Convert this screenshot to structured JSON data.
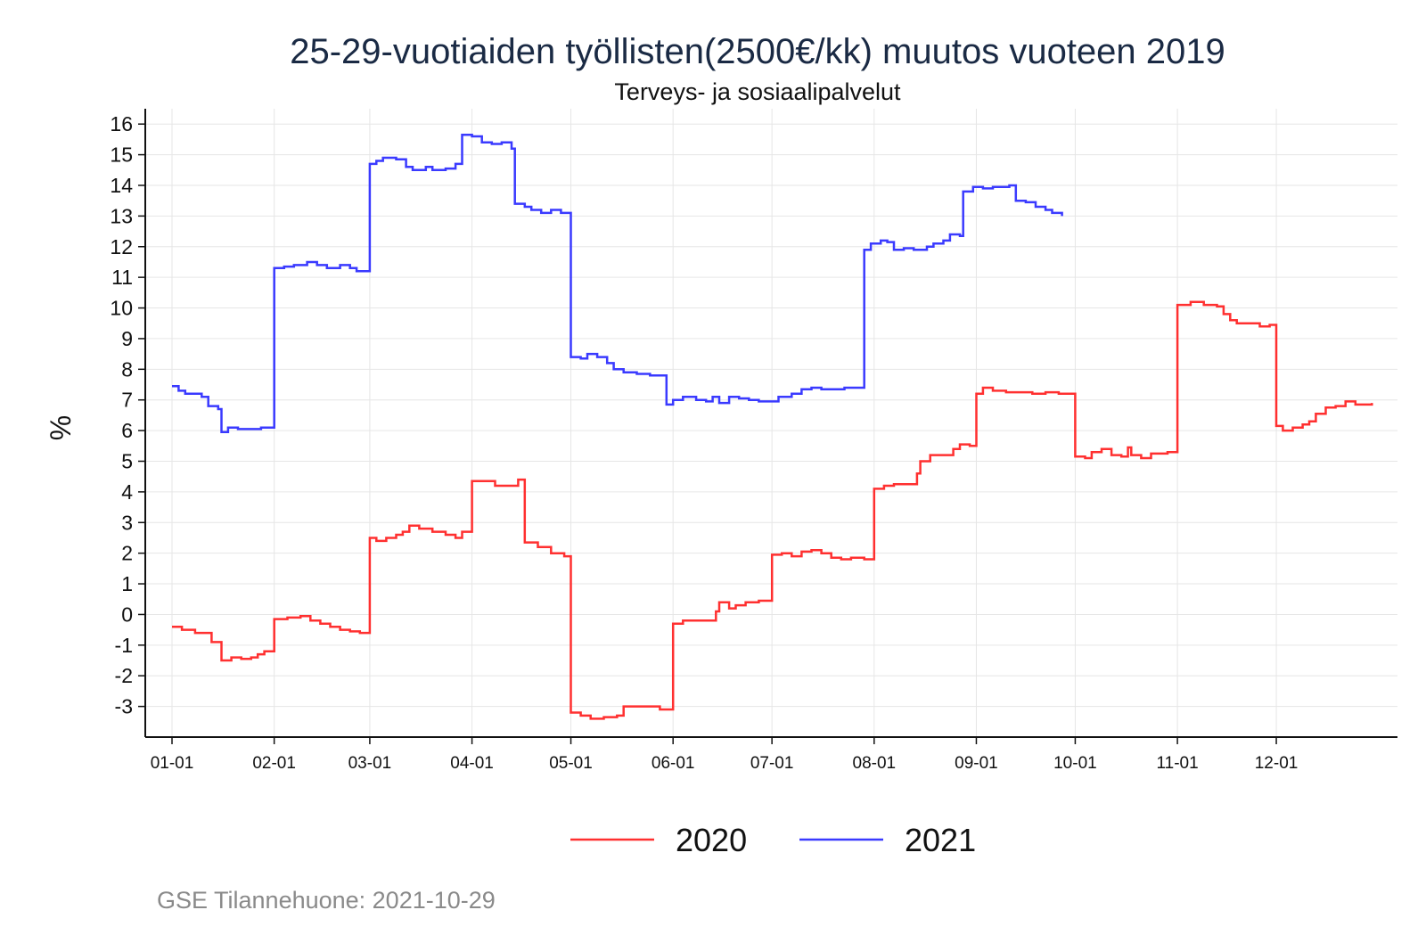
{
  "chart_data": {
    "type": "line",
    "title": "25-29-vuotiaiden työllisten(2500€/kk) muutos vuoteen 2019",
    "subtitle": "Terveys- ja sosiaalipalvelut",
    "ylabel": "%",
    "xlabel": "",
    "ylim": [
      -4,
      16.5
    ],
    "yticks": [
      -3,
      -2,
      -1,
      0,
      1,
      2,
      3,
      4,
      5,
      6,
      7,
      8,
      9,
      10,
      11,
      12,
      13,
      14,
      15,
      16
    ],
    "xlim": [
      1,
      366
    ],
    "xticks": [
      {
        "label": "01-01",
        "day": 1
      },
      {
        "label": "02-01",
        "day": 32
      },
      {
        "label": "03-01",
        "day": 61
      },
      {
        "label": "04-01",
        "day": 92
      },
      {
        "label": "05-01",
        "day": 122
      },
      {
        "label": "06-01",
        "day": 153
      },
      {
        "label": "07-01",
        "day": 183
      },
      {
        "label": "08-01",
        "day": 214
      },
      {
        "label": "09-01",
        "day": 245
      },
      {
        "label": "10-01",
        "day": 275
      },
      {
        "label": "11-01",
        "day": 306
      },
      {
        "label": "12-01",
        "day": 336
      }
    ],
    "grid": true,
    "legend_position": "bottom",
    "series": [
      {
        "name": "2020",
        "color": "#ff3030",
        "points": [
          [
            1,
            -0.4
          ],
          [
            4,
            -0.5
          ],
          [
            8,
            -0.6
          ],
          [
            12,
            -0.6
          ],
          [
            13,
            -0.9
          ],
          [
            16,
            -1.5
          ],
          [
            19,
            -1.4
          ],
          [
            22,
            -1.45
          ],
          [
            25,
            -1.4
          ],
          [
            27,
            -1.3
          ],
          [
            29,
            -1.2
          ],
          [
            32,
            -0.15
          ],
          [
            36,
            -0.1
          ],
          [
            40,
            -0.05
          ],
          [
            43,
            -0.2
          ],
          [
            46,
            -0.3
          ],
          [
            49,
            -0.4
          ],
          [
            52,
            -0.5
          ],
          [
            55,
            -0.55
          ],
          [
            58,
            -0.6
          ],
          [
            61,
            2.5
          ],
          [
            63,
            2.4
          ],
          [
            66,
            2.5
          ],
          [
            69,
            2.6
          ],
          [
            71,
            2.7
          ],
          [
            73,
            2.9
          ],
          [
            76,
            2.8
          ],
          [
            80,
            2.7
          ],
          [
            84,
            2.6
          ],
          [
            87,
            2.5
          ],
          [
            89,
            2.7
          ],
          [
            92,
            4.35
          ],
          [
            96,
            4.35
          ],
          [
            99,
            4.2
          ],
          [
            103,
            4.2
          ],
          [
            106,
            4.4
          ],
          [
            108,
            2.35
          ],
          [
            112,
            2.2
          ],
          [
            116,
            2.0
          ],
          [
            120,
            1.9
          ],
          [
            122,
            -3.2
          ],
          [
            125,
            -3.3
          ],
          [
            128,
            -3.4
          ],
          [
            132,
            -3.35
          ],
          [
            136,
            -3.3
          ],
          [
            138,
            -3.0
          ],
          [
            141,
            -3.0
          ],
          [
            145,
            -3.0
          ],
          [
            149,
            -3.1
          ],
          [
            153,
            -0.3
          ],
          [
            156,
            -0.2
          ],
          [
            160,
            -0.2
          ],
          [
            164,
            -0.2
          ],
          [
            166,
            0.1
          ],
          [
            167,
            0.4
          ],
          [
            170,
            0.2
          ],
          [
            172,
            0.3
          ],
          [
            175,
            0.4
          ],
          [
            179,
            0.45
          ],
          [
            183,
            1.95
          ],
          [
            186,
            2.0
          ],
          [
            189,
            1.9
          ],
          [
            192,
            2.05
          ],
          [
            195,
            2.1
          ],
          [
            198,
            2.0
          ],
          [
            201,
            1.85
          ],
          [
            204,
            1.8
          ],
          [
            207,
            1.85
          ],
          [
            211,
            1.8
          ],
          [
            214,
            4.1
          ],
          [
            217,
            4.2
          ],
          [
            220,
            4.25
          ],
          [
            224,
            4.25
          ],
          [
            227,
            4.6
          ],
          [
            228,
            5.0
          ],
          [
            231,
            5.2
          ],
          [
            235,
            5.2
          ],
          [
            238,
            5.4
          ],
          [
            240,
            5.55
          ],
          [
            243,
            5.5
          ],
          [
            245,
            7.2
          ],
          [
            247,
            7.4
          ],
          [
            250,
            7.3
          ],
          [
            254,
            7.25
          ],
          [
            258,
            7.25
          ],
          [
            262,
            7.2
          ],
          [
            266,
            7.25
          ],
          [
            270,
            7.2
          ],
          [
            273,
            7.2
          ],
          [
            275,
            5.15
          ],
          [
            278,
            5.1
          ],
          [
            280,
            5.3
          ],
          [
            283,
            5.4
          ],
          [
            286,
            5.2
          ],
          [
            289,
            5.15
          ],
          [
            291,
            5.45
          ],
          [
            292,
            5.2
          ],
          [
            295,
            5.1
          ],
          [
            298,
            5.25
          ],
          [
            303,
            5.3
          ],
          [
            306,
            10.1
          ],
          [
            310,
            10.2
          ],
          [
            314,
            10.1
          ],
          [
            318,
            10.05
          ],
          [
            320,
            9.8
          ],
          [
            322,
            9.6
          ],
          [
            324,
            9.5
          ],
          [
            328,
            9.5
          ],
          [
            331,
            9.4
          ],
          [
            334,
            9.45
          ],
          [
            336,
            6.15
          ],
          [
            338,
            6.0
          ],
          [
            341,
            6.1
          ],
          [
            344,
            6.2
          ],
          [
            346,
            6.3
          ],
          [
            348,
            6.55
          ],
          [
            351,
            6.75
          ],
          [
            354,
            6.8
          ],
          [
            357,
            6.95
          ],
          [
            360,
            6.85
          ],
          [
            363,
            6.85
          ],
          [
            365,
            6.9
          ]
        ]
      },
      {
        "name": "2021",
        "color": "#3a3aff",
        "points": [
          [
            1,
            7.45
          ],
          [
            3,
            7.3
          ],
          [
            5,
            7.2
          ],
          [
            8,
            7.2
          ],
          [
            10,
            7.1
          ],
          [
            12,
            6.8
          ],
          [
            15,
            6.7
          ],
          [
            16,
            5.95
          ],
          [
            18,
            6.1
          ],
          [
            21,
            6.05
          ],
          [
            24,
            6.05
          ],
          [
            28,
            6.1
          ],
          [
            32,
            11.3
          ],
          [
            35,
            11.35
          ],
          [
            38,
            11.4
          ],
          [
            42,
            11.5
          ],
          [
            45,
            11.4
          ],
          [
            48,
            11.3
          ],
          [
            52,
            11.4
          ],
          [
            55,
            11.3
          ],
          [
            57,
            11.2
          ],
          [
            61,
            14.7
          ],
          [
            63,
            14.8
          ],
          [
            65,
            14.9
          ],
          [
            69,
            14.85
          ],
          [
            72,
            14.6
          ],
          [
            74,
            14.5
          ],
          [
            78,
            14.6
          ],
          [
            80,
            14.5
          ],
          [
            84,
            14.55
          ],
          [
            87,
            14.7
          ],
          [
            89,
            15.65
          ],
          [
            92,
            15.6
          ],
          [
            95,
            15.4
          ],
          [
            98,
            15.35
          ],
          [
            101,
            15.4
          ],
          [
            104,
            15.2
          ],
          [
            105,
            13.4
          ],
          [
            108,
            13.3
          ],
          [
            110,
            13.2
          ],
          [
            113,
            13.1
          ],
          [
            116,
            13.2
          ],
          [
            119,
            13.1
          ],
          [
            122,
            8.4
          ],
          [
            125,
            8.35
          ],
          [
            127,
            8.5
          ],
          [
            130,
            8.4
          ],
          [
            133,
            8.2
          ],
          [
            135,
            8.0
          ],
          [
            138,
            7.9
          ],
          [
            142,
            7.85
          ],
          [
            146,
            7.8
          ],
          [
            149,
            7.8
          ],
          [
            151,
            6.85
          ],
          [
            153,
            7.0
          ],
          [
            156,
            7.1
          ],
          [
            160,
            7.0
          ],
          [
            163,
            6.95
          ],
          [
            165,
            7.1
          ],
          [
            167,
            6.9
          ],
          [
            170,
            7.1
          ],
          [
            173,
            7.05
          ],
          [
            176,
            7.0
          ],
          [
            179,
            6.95
          ],
          [
            182,
            6.95
          ],
          [
            185,
            7.1
          ],
          [
            189,
            7.2
          ],
          [
            192,
            7.35
          ],
          [
            195,
            7.4
          ],
          [
            198,
            7.35
          ],
          [
            201,
            7.35
          ],
          [
            205,
            7.4
          ],
          [
            208,
            7.4
          ],
          [
            211,
            11.9
          ],
          [
            213,
            12.1
          ],
          [
            216,
            12.2
          ],
          [
            218,
            12.15
          ],
          [
            220,
            11.9
          ],
          [
            223,
            11.95
          ],
          [
            226,
            11.9
          ],
          [
            230,
            12.0
          ],
          [
            232,
            12.1
          ],
          [
            235,
            12.2
          ],
          [
            237,
            12.4
          ],
          [
            240,
            12.35
          ],
          [
            241,
            13.8
          ],
          [
            244,
            13.95
          ],
          [
            247,
            13.9
          ],
          [
            250,
            13.95
          ],
          [
            253,
            13.95
          ],
          [
            255,
            14.0
          ],
          [
            257,
            13.5
          ],
          [
            260,
            13.45
          ],
          [
            263,
            13.3
          ],
          [
            266,
            13.2
          ],
          [
            268,
            13.1
          ],
          [
            271,
            13.0
          ]
        ]
      }
    ]
  },
  "source_text": "GSE Tilannehuone: 2021-10-29"
}
